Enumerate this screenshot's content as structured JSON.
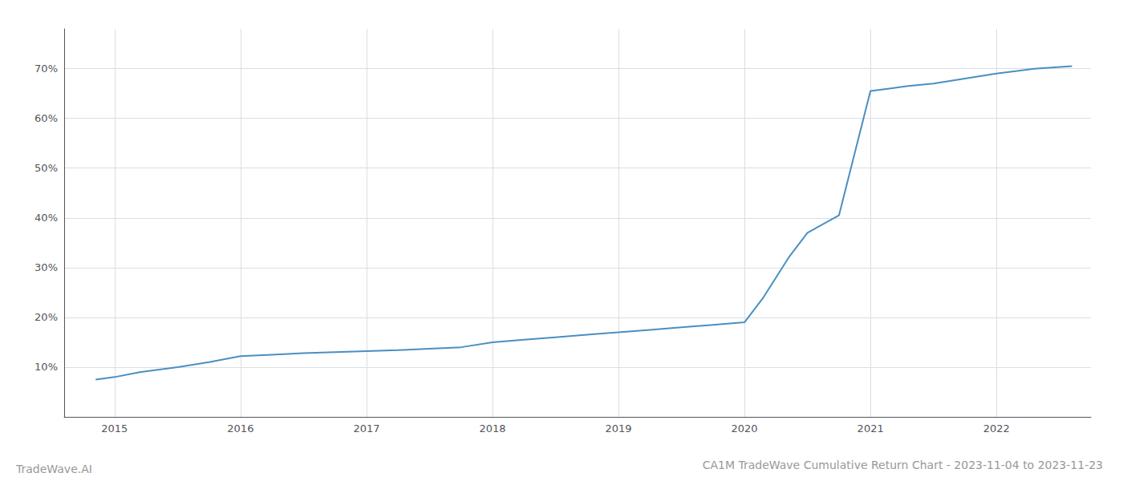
{
  "chart_data": {
    "type": "line",
    "title": "CA1M TradeWave Cumulative Return Chart - 2023-11-04 to 2023-11-23",
    "annotations": [
      "TradeWave.AI"
    ],
    "color": "#4a8fc2",
    "grid": true,
    "x": [
      2014.85,
      2015.0,
      2015.2,
      2015.5,
      2015.75,
      2016.0,
      2016.25,
      2016.5,
      2016.75,
      2017.0,
      2017.25,
      2017.5,
      2017.75,
      2018.0,
      2018.25,
      2018.5,
      2018.75,
      2019.0,
      2019.25,
      2019.5,
      2019.75,
      2020.0,
      2020.15,
      2020.35,
      2020.5,
      2020.75,
      2021.0,
      2021.15,
      2021.3,
      2021.5,
      2021.75,
      2022.0,
      2022.3,
      2022.6
    ],
    "values": [
      7.5,
      8.0,
      9.0,
      10.0,
      11.0,
      12.2,
      12.5,
      12.8,
      13.0,
      13.2,
      13.4,
      13.7,
      14.0,
      15.0,
      15.5,
      16.0,
      16.5,
      17.0,
      17.5,
      18.0,
      18.5,
      19.0,
      24.0,
      32.0,
      37.0,
      40.5,
      65.5,
      66.0,
      66.5,
      67.0,
      68.0,
      69.0,
      70.0,
      70.5
    ],
    "xlim": [
      2014.6,
      2022.75
    ],
    "xticks": [
      2015,
      2016,
      2017,
      2018,
      2019,
      2020,
      2021,
      2022
    ],
    "ylim": [
      0,
      78
    ],
    "yticks": [
      {
        "value": 10,
        "label": "10%"
      },
      {
        "value": 20,
        "label": "20%"
      },
      {
        "value": 30,
        "label": "30%"
      },
      {
        "value": 40,
        "label": "40%"
      },
      {
        "value": 50,
        "label": "50%"
      },
      {
        "value": 60,
        "label": "60%"
      },
      {
        "value": 70,
        "label": "70%"
      }
    ]
  }
}
